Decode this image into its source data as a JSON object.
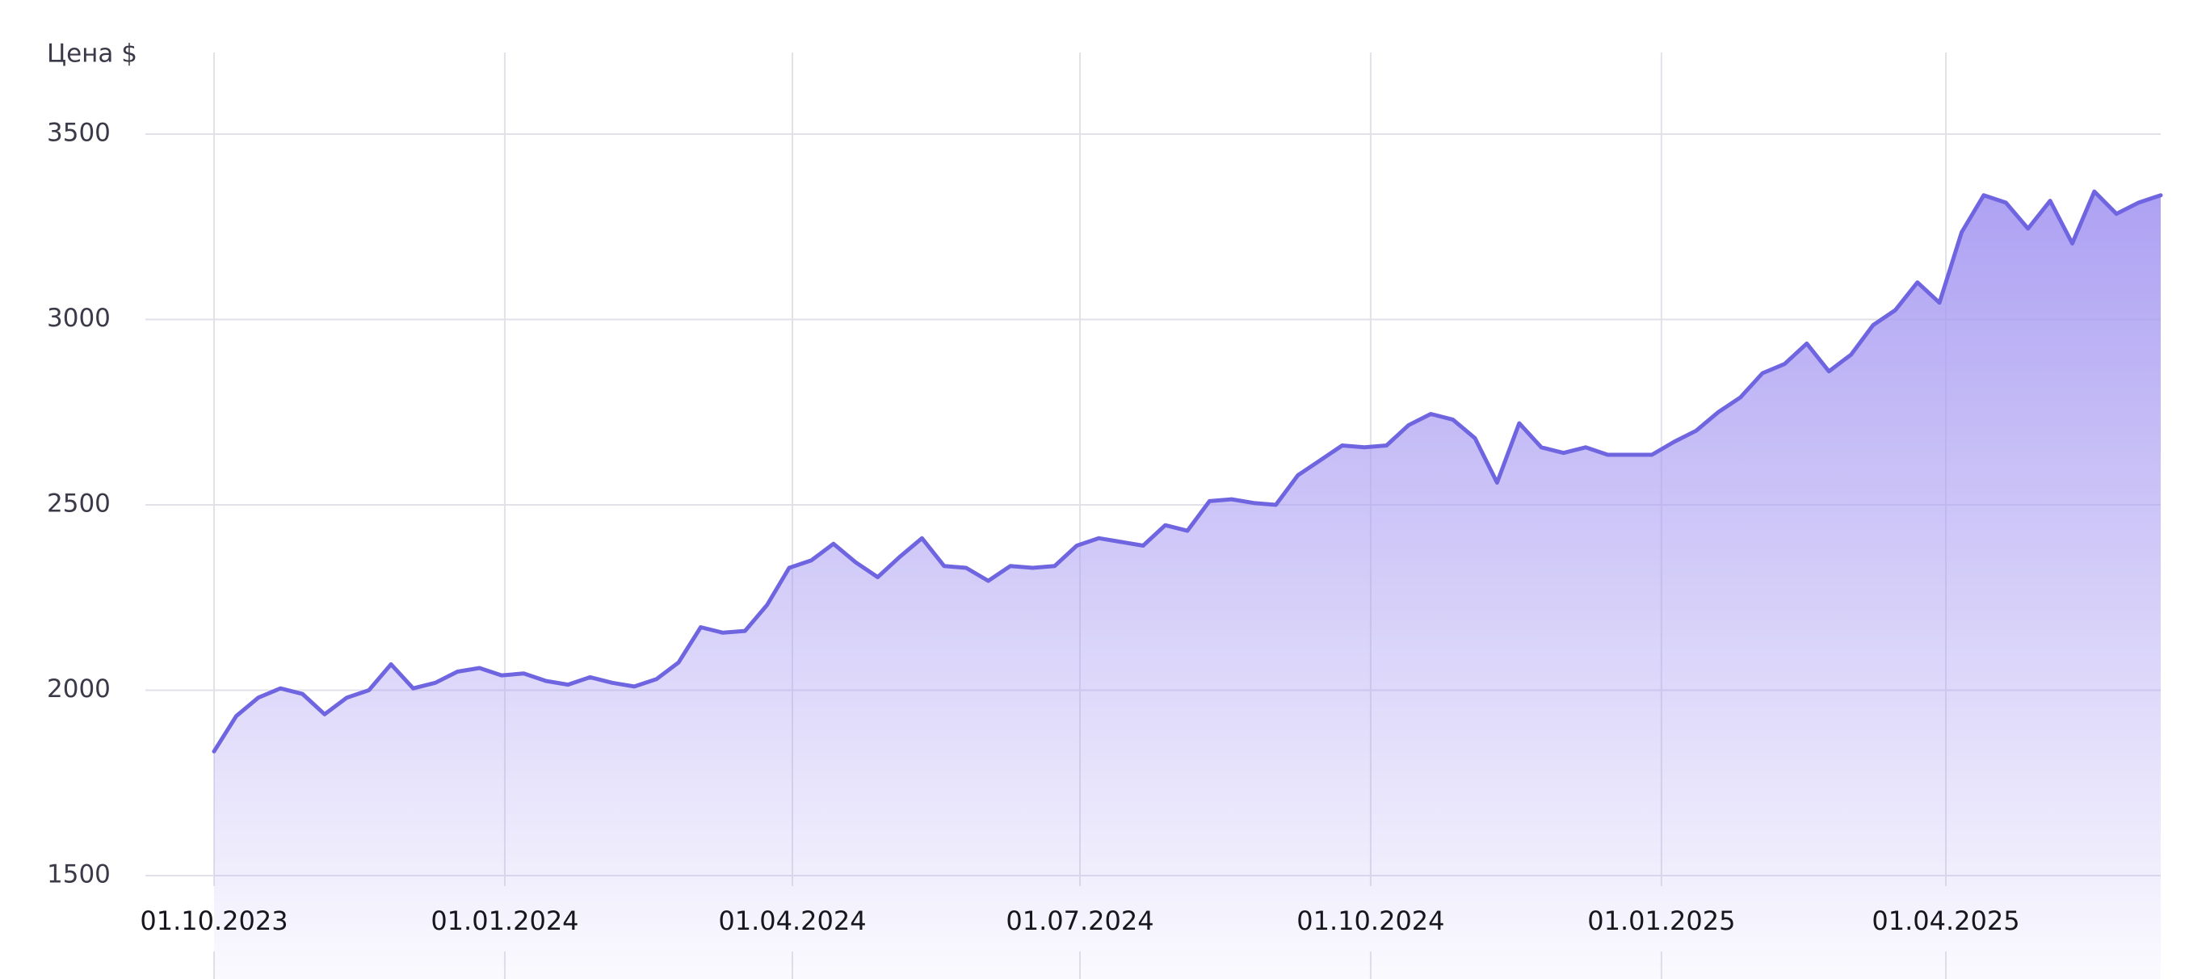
{
  "chart_data": {
    "type": "area",
    "y_label": "Цена $",
    "x": [
      "2023-10-01",
      "2023-10-08",
      "2023-10-15",
      "2023-10-22",
      "2023-10-29",
      "2023-11-05",
      "2023-11-12",
      "2023-11-19",
      "2023-11-26",
      "2023-12-03",
      "2023-12-10",
      "2023-12-17",
      "2023-12-24",
      "2023-12-31",
      "2024-01-07",
      "2024-01-14",
      "2024-01-21",
      "2024-01-28",
      "2024-02-04",
      "2024-02-11",
      "2024-02-18",
      "2024-02-25",
      "2024-03-03",
      "2024-03-10",
      "2024-03-17",
      "2024-03-24",
      "2024-03-31",
      "2024-04-07",
      "2024-04-14",
      "2024-04-21",
      "2024-04-28",
      "2024-05-05",
      "2024-05-12",
      "2024-05-19",
      "2024-05-26",
      "2024-06-02",
      "2024-06-09",
      "2024-06-16",
      "2024-06-23",
      "2024-06-30",
      "2024-07-07",
      "2024-07-14",
      "2024-07-21",
      "2024-07-28",
      "2024-08-04",
      "2024-08-11",
      "2024-08-18",
      "2024-08-25",
      "2024-09-01",
      "2024-09-08",
      "2024-09-15",
      "2024-09-22",
      "2024-09-29",
      "2024-10-06",
      "2024-10-13",
      "2024-10-20",
      "2024-10-27",
      "2024-11-03",
      "2024-11-10",
      "2024-11-17",
      "2024-11-24",
      "2024-12-01",
      "2024-12-08",
      "2024-12-15",
      "2024-12-22",
      "2024-12-29",
      "2025-01-05",
      "2025-01-12",
      "2025-01-19",
      "2025-01-26",
      "2025-02-02",
      "2025-02-09",
      "2025-02-16",
      "2025-02-23",
      "2025-03-02",
      "2025-03-09",
      "2025-03-16",
      "2025-03-23",
      "2025-03-30",
      "2025-04-06",
      "2025-04-13",
      "2025-04-20",
      "2025-04-27",
      "2025-05-04",
      "2025-05-11",
      "2025-05-18",
      "2025-05-25",
      "2025-06-01",
      "2025-06-08"
    ],
    "series": [
      {
        "name": "Цена",
        "color": "#7065e0",
        "fill": "#a99cf2",
        "values": [
          1835,
          1930,
          1980,
          2005,
          1990,
          1935,
          1980,
          2000,
          2070,
          2005,
          2020,
          2050,
          2060,
          2040,
          2045,
          2025,
          2015,
          2035,
          2020,
          2010,
          2030,
          2075,
          2170,
          2155,
          2160,
          2230,
          2330,
          2350,
          2395,
          2345,
          2305,
          2360,
          2410,
          2335,
          2330,
          2295,
          2335,
          2330,
          2335,
          2390,
          2410,
          2400,
          2390,
          2445,
          2430,
          2510,
          2515,
          2505,
          2500,
          2580,
          2620,
          2660,
          2655,
          2660,
          2715,
          2745,
          2730,
          2680,
          2560,
          2720,
          2655,
          2640,
          2655,
          2635,
          2635,
          2635,
          2670,
          2700,
          2750,
          2790,
          2855,
          2880,
          2935,
          2860,
          2905,
          2985,
          3025,
          3100,
          3045,
          3235,
          3335,
          3315,
          3245,
          3320,
          3205,
          3345,
          3285,
          3315,
          3335
        ]
      }
    ],
    "xlim": [
      "2023-10-01",
      "2025-06-08"
    ],
    "xticks": [
      {
        "value": "2023-10-01",
        "label": "01.10.2023"
      },
      {
        "value": "2024-01-01",
        "label": "01.01.2024"
      },
      {
        "value": "2024-04-01",
        "label": "01.04.2024"
      },
      {
        "value": "2024-07-01",
        "label": "01.07.2024"
      },
      {
        "value": "2024-10-01",
        "label": "01.10.2024"
      },
      {
        "value": "2025-01-01",
        "label": "01.01.2025"
      },
      {
        "value": "2025-04-01",
        "label": "01.04.2025"
      }
    ],
    "ylim": [
      1500,
      3720
    ],
    "yticks": [
      1500,
      2000,
      2500,
      3000,
      3500
    ],
    "grid": true
  }
}
